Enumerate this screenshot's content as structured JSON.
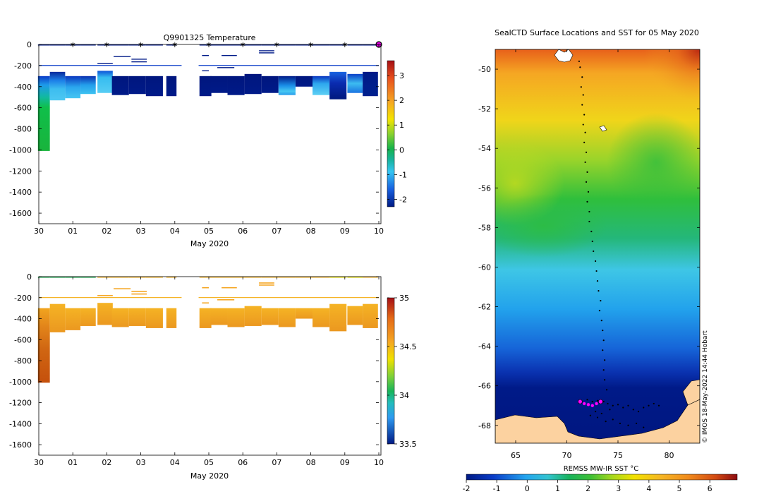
{
  "chart_data": [
    {
      "id": "temperature_section",
      "type": "heatmap",
      "title": "Q9901325  Temperature",
      "xlabel": "May 2020",
      "ylabel": "",
      "x_ticks": [
        "30",
        "01",
        "02",
        "03",
        "04",
        "05",
        "06",
        "07",
        "08",
        "09",
        "10"
      ],
      "ylim": [
        -1700,
        0
      ],
      "y_ticks": [
        0,
        -200,
        -400,
        -600,
        -800,
        -1000,
        -1200,
        -1400,
        -1600
      ],
      "colorbar": {
        "min": -2.3,
        "max": 3.6,
        "ticks": [
          3,
          2,
          1,
          0,
          -1,
          -2
        ]
      },
      "profile_markers_day": [
        1,
        2,
        3,
        4,
        5,
        6,
        7,
        8,
        9,
        10
      ],
      "profiles": [
        {
          "day": 0.15,
          "w": 0.35,
          "top": 300,
          "bottom": 1010,
          "grad": [
            [
              "0",
              "#0a3cc8"
            ],
            [
              "0.12",
              "#1e9bea"
            ],
            [
              "0.28",
              "#12b9a0"
            ],
            [
              "0.42",
              "#0fbf4a"
            ],
            [
              "1",
              "#19b43c"
            ]
          ]
        },
        {
          "day": 0.55,
          "w": 0.45,
          "top": 260,
          "bottom": 530,
          "grad": [
            [
              "0",
              "#082a9c"
            ],
            [
              "0.3",
              "#1c7fe8"
            ],
            [
              "0.6",
              "#3dbdf0"
            ],
            [
              "1",
              "#4cc7f2"
            ]
          ]
        },
        {
          "day": 1.0,
          "w": 0.45,
          "top": 300,
          "bottom": 510,
          "grad": [
            [
              "0",
              "#0a38c0"
            ],
            [
              "0.5",
              "#2aa6ee"
            ],
            [
              "1",
              "#46c6f2"
            ]
          ]
        },
        {
          "day": 1.45,
          "w": 0.45,
          "top": 300,
          "bottom": 470,
          "grad": [
            [
              "0",
              "#0a2fb0"
            ],
            [
              "0.5",
              "#24a0ec"
            ],
            [
              "1",
              "#3ec2f0"
            ]
          ]
        },
        {
          "day": 1.95,
          "w": 0.45,
          "top": 250,
          "bottom": 460,
          "grad": [
            [
              "0",
              "#0c52d8"
            ],
            [
              "0.3",
              "#36bcf0"
            ],
            [
              "1",
              "#56cdf4"
            ]
          ]
        },
        {
          "day": 2.4,
          "w": 0.5,
          "top": 300,
          "bottom": 480,
          "grad": [
            [
              "0",
              "#00167e"
            ],
            [
              "1",
              "#001a88"
            ]
          ]
        },
        {
          "day": 2.9,
          "w": 0.5,
          "top": 300,
          "bottom": 470,
          "grad": [
            [
              "0",
              "#00167e"
            ],
            [
              "1",
              "#001a88"
            ]
          ]
        },
        {
          "day": 3.4,
          "w": 0.5,
          "top": 300,
          "bottom": 490,
          "grad": [
            [
              "0",
              "#00167e"
            ],
            [
              "1",
              "#001a88"
            ]
          ]
        },
        {
          "day": 3.9,
          "w": 0.3,
          "top": 300,
          "bottom": 490,
          "grad": [
            [
              "0",
              "#00167e"
            ],
            [
              "1",
              "#001a88"
            ]
          ]
        },
        {
          "day": 4.9,
          "w": 0.35,
          "top": 300,
          "bottom": 490,
          "grad": [
            [
              "0",
              "#00167e"
            ],
            [
              "1",
              "#001a88"
            ]
          ]
        },
        {
          "day": 5.3,
          "w": 0.5,
          "top": 300,
          "bottom": 460,
          "grad": [
            [
              "0",
              "#00167e"
            ],
            [
              "1",
              "#001a88"
            ]
          ]
        },
        {
          "day": 5.8,
          "w": 0.5,
          "top": 300,
          "bottom": 480,
          "grad": [
            [
              "0",
              "#00167e"
            ],
            [
              "1",
              "#001a88"
            ]
          ]
        },
        {
          "day": 6.3,
          "w": 0.5,
          "top": 280,
          "bottom": 470,
          "grad": [
            [
              "0",
              "#00167e"
            ],
            [
              "1",
              "#001a88"
            ]
          ]
        },
        {
          "day": 6.8,
          "w": 0.5,
          "top": 300,
          "bottom": 460,
          "grad": [
            [
              "0",
              "#00167e"
            ],
            [
              "1",
              "#001a88"
            ]
          ]
        },
        {
          "day": 7.3,
          "w": 0.5,
          "top": 300,
          "bottom": 480,
          "grad": [
            [
              "0",
              "#001a88"
            ],
            [
              "0.5",
              "#1a8ee8"
            ],
            [
              "0.8",
              "#45c8f2"
            ],
            [
              "1",
              "#2a9cec"
            ]
          ]
        },
        {
          "day": 7.8,
          "w": 0.5,
          "top": 300,
          "bottom": 400,
          "grad": [
            [
              "0",
              "#00167e"
            ],
            [
              "1",
              "#001a88"
            ]
          ]
        },
        {
          "day": 8.3,
          "w": 0.5,
          "top": 300,
          "bottom": 480,
          "grad": [
            [
              "0",
              "#0a36c0"
            ],
            [
              "0.4",
              "#2ea8ee"
            ],
            [
              "1",
              "#5ed0f4"
            ]
          ]
        },
        {
          "day": 8.8,
          "w": 0.5,
          "top": 260,
          "bottom": 520,
          "grad": [
            [
              "0",
              "#1a64e0"
            ],
            [
              "0.4",
              "#0a2cb0"
            ],
            [
              "1",
              "#00187e"
            ]
          ]
        },
        {
          "day": 9.3,
          "w": 0.45,
          "top": 280,
          "bottom": 460,
          "grad": [
            [
              "0",
              "#0a40c8"
            ],
            [
              "0.5",
              "#3cbcf0"
            ],
            [
              "1",
              "#1a74e2"
            ]
          ]
        },
        {
          "day": 9.75,
          "w": 0.45,
          "top": 260,
          "bottom": 490,
          "grad": [
            [
              "0",
              "#001a88"
            ],
            [
              "1",
              "#00208e"
            ]
          ]
        }
      ]
    },
    {
      "id": "salinity_section",
      "type": "heatmap",
      "title": "",
      "xlabel": "May 2020",
      "ylabel": "",
      "x_ticks": [
        "30",
        "01",
        "02",
        "03",
        "04",
        "05",
        "06",
        "07",
        "08",
        "09",
        "10"
      ],
      "ylim": [
        -1700,
        0
      ],
      "y_ticks": [
        0,
        -200,
        -400,
        -600,
        -800,
        -1000,
        -1200,
        -1400,
        -1600
      ],
      "colorbar": {
        "min": 33.5,
        "max": 35,
        "ticks": [
          "35",
          "34.5",
          "34",
          "33.5"
        ]
      },
      "profiles": [
        {
          "day": 0.15,
          "w": 0.35,
          "top": 300,
          "bottom": 1010,
          "grad": [
            [
              "0",
              "#f2a51f"
            ],
            [
              "0.25",
              "#e2841a"
            ],
            [
              "0.55",
              "#d06612"
            ],
            [
              "1",
              "#c5500c"
            ]
          ]
        },
        {
          "day": 0.55,
          "w": 0.45,
          "top": 260,
          "bottom": 530,
          "grad": [
            [
              "0",
              "#f5b324"
            ],
            [
              "1",
              "#eb9820"
            ]
          ]
        },
        {
          "day": 1.0,
          "w": 0.45,
          "top": 300,
          "bottom": 510,
          "grad": [
            [
              "0",
              "#f5b324"
            ],
            [
              "1",
              "#eb9820"
            ]
          ]
        },
        {
          "day": 1.45,
          "w": 0.45,
          "top": 300,
          "bottom": 470,
          "grad": [
            [
              "0",
              "#f5b324"
            ],
            [
              "1",
              "#eb9820"
            ]
          ]
        },
        {
          "day": 1.95,
          "w": 0.45,
          "top": 250,
          "bottom": 460,
          "grad": [
            [
              "0",
              "#f5b324"
            ],
            [
              "1",
              "#eb9820"
            ]
          ]
        },
        {
          "day": 2.4,
          "w": 0.5,
          "top": 300,
          "bottom": 480,
          "grad": [
            [
              "0",
              "#f5b324"
            ],
            [
              "1",
              "#eb9820"
            ]
          ]
        },
        {
          "day": 2.9,
          "w": 0.5,
          "top": 300,
          "bottom": 470,
          "grad": [
            [
              "0",
              "#f5b324"
            ],
            [
              "1",
              "#eb9820"
            ]
          ]
        },
        {
          "day": 3.4,
          "w": 0.5,
          "top": 300,
          "bottom": 490,
          "grad": [
            [
              "0",
              "#f5b324"
            ],
            [
              "1",
              "#eb9820"
            ]
          ]
        },
        {
          "day": 3.9,
          "w": 0.3,
          "top": 300,
          "bottom": 490,
          "grad": [
            [
              "0",
              "#f5b324"
            ],
            [
              "1",
              "#eb9820"
            ]
          ]
        },
        {
          "day": 4.9,
          "w": 0.35,
          "top": 300,
          "bottom": 490,
          "grad": [
            [
              "0",
              "#f5b324"
            ],
            [
              "1",
              "#eb9820"
            ]
          ]
        },
        {
          "day": 5.3,
          "w": 0.5,
          "top": 300,
          "bottom": 460,
          "grad": [
            [
              "0",
              "#f5b324"
            ],
            [
              "1",
              "#eb9820"
            ]
          ]
        },
        {
          "day": 5.8,
          "w": 0.5,
          "top": 300,
          "bottom": 480,
          "grad": [
            [
              "0",
              "#f5b324"
            ],
            [
              "1",
              "#eb9820"
            ]
          ]
        },
        {
          "day": 6.3,
          "w": 0.5,
          "top": 280,
          "bottom": 470,
          "grad": [
            [
              "0",
              "#f5b324"
            ],
            [
              "1",
              "#eb9820"
            ]
          ]
        },
        {
          "day": 6.8,
          "w": 0.5,
          "top": 300,
          "bottom": 460,
          "grad": [
            [
              "0",
              "#f5b324"
            ],
            [
              "1",
              "#eb9820"
            ]
          ]
        },
        {
          "day": 7.3,
          "w": 0.5,
          "top": 300,
          "bottom": 480,
          "grad": [
            [
              "0",
              "#f5b324"
            ],
            [
              "1",
              "#eb9820"
            ]
          ]
        },
        {
          "day": 7.8,
          "w": 0.5,
          "top": 300,
          "bottom": 400,
          "grad": [
            [
              "0",
              "#f5b324"
            ],
            [
              "1",
              "#eb9820"
            ]
          ]
        },
        {
          "day": 8.3,
          "w": 0.5,
          "top": 300,
          "bottom": 480,
          "grad": [
            [
              "0",
              "#f5b324"
            ],
            [
              "1",
              "#eb9820"
            ]
          ]
        },
        {
          "day": 8.8,
          "w": 0.5,
          "top": 260,
          "bottom": 520,
          "grad": [
            [
              "0",
              "#f5b324"
            ],
            [
              "1",
              "#eb9820"
            ]
          ]
        },
        {
          "day": 9.3,
          "w": 0.45,
          "top": 280,
          "bottom": 460,
          "grad": [
            [
              "0",
              "#f5b324"
            ],
            [
              "1",
              "#eb9820"
            ]
          ]
        },
        {
          "day": 9.75,
          "w": 0.45,
          "top": 260,
          "bottom": 490,
          "grad": [
            [
              "0",
              "#f5b324"
            ],
            [
              "1",
              "#eb9820"
            ]
          ]
        }
      ]
    },
    {
      "id": "sst_map",
      "type": "heatmap",
      "title": "SealCTD Surface Locations and SST for 05 May 2020",
      "xlabel": "",
      "ylabel": "",
      "xlim": [
        63,
        83
      ],
      "ylim": [
        -68.9,
        -49
      ],
      "x_ticks": [
        65,
        70,
        75,
        80
      ],
      "y_ticks": [
        -50,
        -52,
        -54,
        -56,
        -58,
        -60,
        -62,
        -64,
        -66,
        -68
      ],
      "colorbar": {
        "label": "REMSS MW-IR SST °C",
        "min": -2,
        "max": 6.9,
        "ticks": [
          "-2",
          "-1",
          "0",
          "1",
          "2",
          "3",
          "4",
          "5",
          "6"
        ]
      },
      "track_points": [
        [
          71.2,
          -49.6
        ],
        [
          71.3,
          -49.9
        ],
        [
          71.5,
          -50.4
        ],
        [
          71.4,
          -50.9
        ],
        [
          71.6,
          -51.3
        ],
        [
          71.5,
          -51.8
        ],
        [
          71.7,
          -52.3
        ],
        [
          71.6,
          -52.8
        ],
        [
          71.8,
          -53.2
        ],
        [
          71.7,
          -53.7
        ],
        [
          71.9,
          -54.2
        ],
        [
          71.8,
          -54.7
        ],
        [
          72.0,
          -55.2
        ],
        [
          71.9,
          -55.7
        ],
        [
          72.1,
          -56.2
        ],
        [
          72.0,
          -56.7
        ],
        [
          72.2,
          -57.2
        ],
        [
          72.2,
          -57.7
        ],
        [
          72.4,
          -58.2
        ],
        [
          72.5,
          -58.7
        ],
        [
          72.6,
          -59.2
        ],
        [
          72.8,
          -59.7
        ],
        [
          72.9,
          -60.2
        ],
        [
          73.0,
          -60.7
        ],
        [
          73.1,
          -61.2
        ],
        [
          73.3,
          -61.7
        ],
        [
          73.2,
          -62.2
        ],
        [
          73.4,
          -62.7
        ],
        [
          73.5,
          -63.2
        ],
        [
          73.6,
          -63.7
        ],
        [
          73.5,
          -64.2
        ],
        [
          73.7,
          -64.7
        ],
        [
          73.6,
          -65.2
        ],
        [
          73.7,
          -65.7
        ],
        [
          73.9,
          -66.2
        ],
        [
          72.0,
          -66.7
        ],
        [
          72.5,
          -66.8
        ],
        [
          73.0,
          -66.75
        ],
        [
          73.6,
          -66.8
        ],
        [
          74.0,
          -66.9
        ],
        [
          74.5,
          -67.0
        ],
        [
          75.0,
          -66.95
        ],
        [
          75.5,
          -67.1
        ],
        [
          76.0,
          -67.0
        ],
        [
          76.5,
          -67.2
        ],
        [
          77.0,
          -67.3
        ],
        [
          77.5,
          -67.1
        ],
        [
          78.0,
          -67.0
        ],
        [
          78.5,
          -66.9
        ],
        [
          79.0,
          -67.0
        ],
        [
          72.3,
          -67.5
        ],
        [
          73.0,
          -67.6
        ],
        [
          73.8,
          -67.8
        ],
        [
          74.5,
          -67.7
        ],
        [
          75.2,
          -67.9
        ],
        [
          76.0,
          -68.0
        ],
        [
          76.8,
          -67.9
        ],
        [
          77.5,
          -68.1
        ],
        [
          72.8,
          -67.3
        ],
        [
          73.4,
          -67.4
        ],
        [
          74.2,
          -67.2
        ]
      ],
      "highlight_points": [
        [
          71.3,
          -66.8
        ],
        [
          71.7,
          -66.9
        ],
        [
          72.1,
          -66.95
        ],
        [
          72.5,
          -67.0
        ],
        [
          72.9,
          -66.9
        ],
        [
          73.3,
          -66.8
        ]
      ],
      "watermark": "© IMOS 18-May-2022 14:44 Hobart"
    }
  ]
}
